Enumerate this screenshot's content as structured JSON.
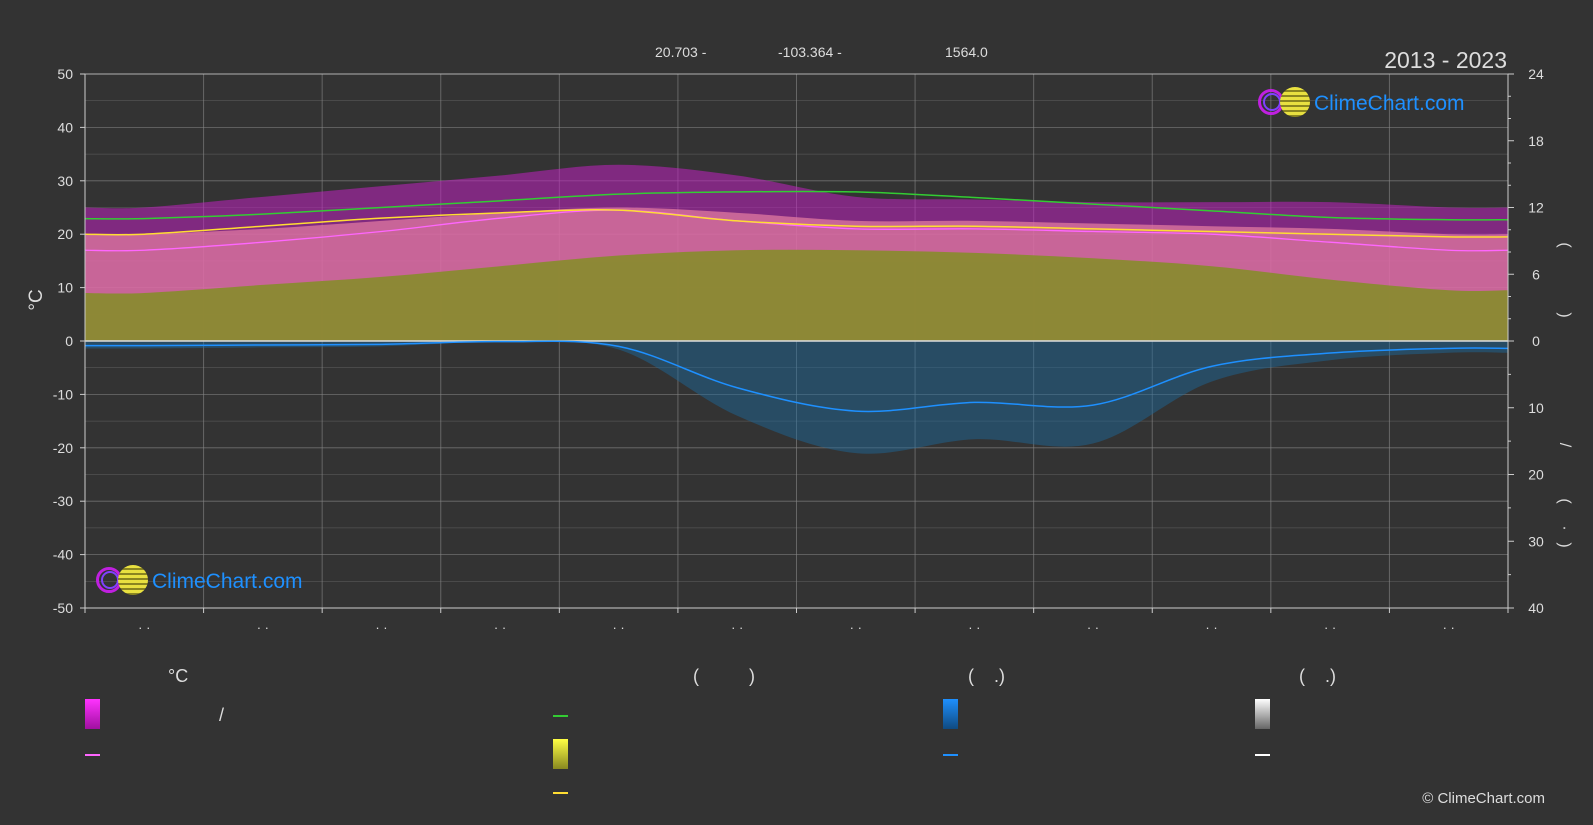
{
  "header": {
    "lat": "20.703 -",
    "lon": "-103.364 -",
    "elev": "1564.0",
    "years": "2013 - 2023"
  },
  "logo_text": "ClimeChart.com",
  "copyright": "© ClimeChart.com",
  "legend": {
    "col1_title": "°C",
    "col2_title": "(          )",
    "col3_title": "(    .)",
    "col4_title": "(    .)",
    "slash": "/"
  },
  "colors": {
    "background": "#333333",
    "day_night_band": "#c020c0",
    "avg_temp_band": "#e07aa0",
    "sunshine_band": "#8a8a30",
    "daylight_line": "#33cc33",
    "max_temp_line": "#ff66ff",
    "sunshine_line": "#ffdd33",
    "rain_band": "#1a6aa0",
    "rain_line": "#1e90ff",
    "grid": "#888888",
    "zero_line": "#dddddd"
  },
  "chart_data": {
    "type": "area",
    "left_axis": {
      "label": "°C",
      "ylim": [
        -50,
        50
      ],
      "ticks": [
        50,
        40,
        30,
        20,
        10,
        0,
        -10,
        -20,
        -30,
        -40,
        -50
      ]
    },
    "right_axis_top": {
      "ylim": [
        0,
        24
      ],
      "ticks": [
        24,
        18,
        12,
        6,
        0
      ],
      "labels_glyphs": [
        "(",
        ")"
      ]
    },
    "right_axis_bottom": {
      "ylim": [
        0,
        40
      ],
      "ticks": [
        0,
        10,
        20,
        30,
        40
      ],
      "labels_glyphs": [
        "/",
        "(",
        "·",
        ")"
      ]
    },
    "x_tick_labels": [
      "· ·",
      "· ·",
      "· ·",
      "· ·",
      "· ·",
      "· ·",
      "· ·",
      "· ·",
      "· ·",
      "· ·",
      "· ·",
      "· ·"
    ],
    "months": 12,
    "series": [
      {
        "role": "daylight_hours",
        "axis": "right_top",
        "values": [
          11.0,
          11.4,
          12.0,
          12.6,
          13.2,
          13.4,
          13.4,
          12.9,
          12.3,
          11.7,
          11.1,
          10.9
        ]
      },
      {
        "role": "max_temp_line",
        "axis": "left",
        "values": [
          17.0,
          18.5,
          20.5,
          23.0,
          24.5,
          22.5,
          21.0,
          21.0,
          20.5,
          20.0,
          18.5,
          17.0
        ]
      },
      {
        "role": "sunshine_line",
        "axis": "left",
        "values": [
          20.0,
          21.5,
          23.0,
          24.0,
          24.5,
          22.5,
          21.5,
          21.5,
          21.0,
          20.5,
          20.0,
          19.5
        ]
      },
      {
        "role": "day_max_band_top",
        "axis": "left",
        "values": [
          25.0,
          27.0,
          29.0,
          31.0,
          33.0,
          31.0,
          27.0,
          26.5,
          26.0,
          26.0,
          26.0,
          25.0
        ]
      },
      {
        "role": "avg_band_top",
        "axis": "left",
        "values": [
          20.0,
          21.0,
          22.5,
          24.0,
          25.0,
          24.0,
          22.5,
          22.5,
          22.0,
          21.5,
          21.0,
          20.0
        ]
      },
      {
        "role": "sunshine_band_top",
        "axis": "left",
        "values": [
          9.0,
          10.5,
          12.0,
          14.0,
          16.0,
          17.0,
          17.0,
          16.5,
          15.5,
          14.0,
          11.5,
          9.5
        ]
      },
      {
        "role": "precip_line",
        "axis": "right_bottom",
        "values": [
          0.7,
          0.6,
          0.5,
          0.1,
          0.8,
          7.0,
          10.5,
          9.2,
          9.6,
          3.8,
          1.8,
          1.1
        ]
      }
    ]
  }
}
